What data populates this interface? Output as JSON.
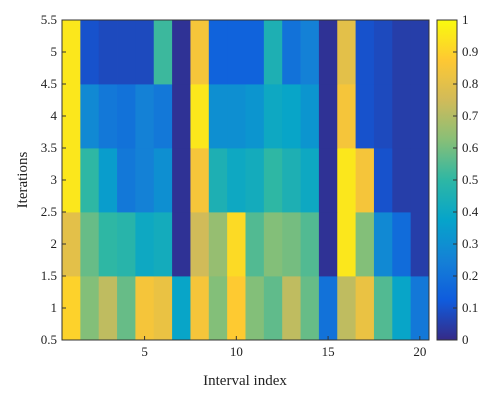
{
  "chart_data": {
    "type": "heatmap",
    "xlabel": "Interval index",
    "ylabel": "Iterations",
    "x_tick_labels": [
      "5",
      "10",
      "15",
      "20"
    ],
    "y_tick_labels": [
      "0.5",
      "1",
      "1.5",
      "2",
      "2.5",
      "3",
      "3.5",
      "4",
      "4.5",
      "5",
      "5.5"
    ],
    "colorbar_tick_labels": [
      "0",
      "0.1",
      "0.2",
      "0.3",
      "0.4",
      "0.5",
      "0.6",
      "0.7",
      "0.8",
      "0.9",
      "1"
    ],
    "x_range": [
      0.5,
      20.5
    ],
    "y_range": [
      0.5,
      5.5
    ],
    "colorbar_range": [
      0,
      1
    ],
    "colormap": "parula",
    "colormap_stops": [
      "#352a87",
      "#0f5cdd",
      "#1481d6",
      "#06a4ca",
      "#2eb7a4",
      "#87bf77",
      "#d1bb59",
      "#fec832",
      "#f9fb0e"
    ],
    "x": [
      1,
      2,
      3,
      4,
      5,
      6,
      7,
      8,
      9,
      10,
      11,
      12,
      13,
      14,
      15,
      16,
      17,
      18,
      19,
      20
    ],
    "y": [
      1,
      2,
      3,
      4,
      5
    ],
    "values": [
      [
        0.9,
        0.62,
        0.72,
        0.58,
        0.85,
        0.82,
        0.38,
        0.85,
        0.62,
        0.88,
        0.62,
        0.57,
        0.72,
        0.58,
        0.2,
        0.72,
        0.82,
        0.55,
        0.38,
        0.22
      ],
      [
        0.8,
        0.58,
        0.5,
        0.48,
        0.4,
        0.42,
        0.02,
        0.75,
        0.65,
        0.92,
        0.55,
        0.62,
        0.6,
        0.55,
        0.02,
        0.95,
        0.62,
        0.28,
        0.18,
        0.05
      ],
      [
        0.95,
        0.5,
        0.35,
        0.22,
        0.25,
        0.3,
        0.02,
        0.85,
        0.45,
        0.4,
        0.42,
        0.5,
        0.45,
        0.4,
        0.02,
        0.95,
        0.85,
        0.1,
        0.05,
        0.05
      ],
      [
        0.95,
        0.28,
        0.22,
        0.2,
        0.25,
        0.22,
        0.02,
        0.95,
        0.3,
        0.3,
        0.32,
        0.4,
        0.38,
        0.32,
        0.02,
        0.85,
        0.1,
        0.08,
        0.05,
        0.05
      ],
      [
        0.95,
        0.1,
        0.08,
        0.08,
        0.08,
        0.52,
        0.02,
        0.85,
        0.15,
        0.15,
        0.15,
        0.45,
        0.2,
        0.25,
        0.02,
        0.8,
        0.1,
        0.08,
        0.05,
        0.05
      ]
    ]
  }
}
